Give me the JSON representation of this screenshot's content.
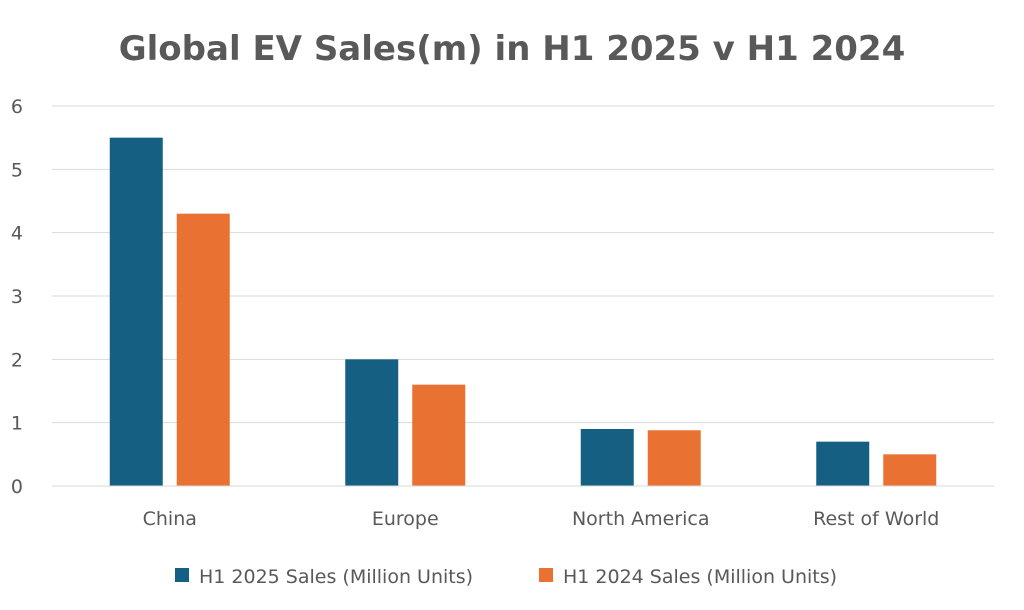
{
  "chart_data": {
    "type": "bar",
    "title": "Global EV Sales(m) in H1 2025 v H1 2024",
    "xlabel": "",
    "ylabel": "",
    "categories": [
      "China",
      "Europe",
      "North America",
      "Rest of World"
    ],
    "series": [
      {
        "name": "H1 2025 Sales (Million Units)",
        "values": [
          5.5,
          2.0,
          0.9,
          0.7
        ],
        "color": "#156082"
      },
      {
        "name": "H1 2024 Sales (Million Units)",
        "values": [
          4.3,
          1.6,
          0.88,
          0.5
        ],
        "color": "#E97132"
      }
    ],
    "ylim": [
      0,
      6
    ],
    "yticks": [
      "0",
      "1",
      "2",
      "3",
      "4",
      "5",
      "6"
    ],
    "grid": true,
    "legend": "bottom"
  }
}
